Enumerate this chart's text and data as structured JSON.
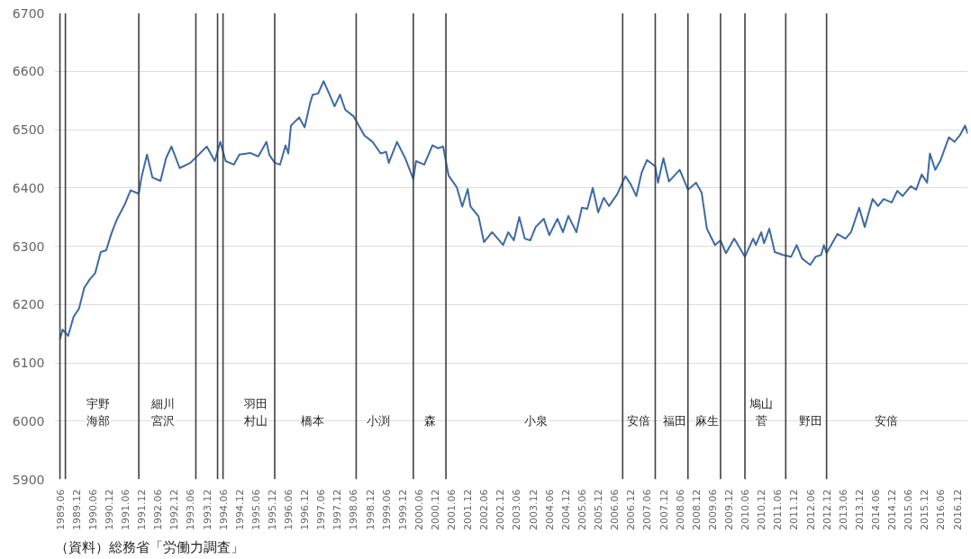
{
  "chart_data": {
    "type": "line",
    "x": [
      "1989-06",
      "1989-07",
      "1989-09",
      "1989-11",
      "1990-01",
      "1990-03",
      "1990-05",
      "1990-07",
      "1990-09",
      "1990-11",
      "1991-01",
      "1991-03",
      "1991-06",
      "1991-08",
      "1991-11",
      "1991-12",
      "1992-02",
      "1992-04",
      "1992-07",
      "1992-09",
      "1992-11",
      "1993-02",
      "1993-06",
      "1993-09",
      "1993-12",
      "1994-03",
      "1994-05",
      "1994-07",
      "1994-10",
      "1994-12",
      "1995-04",
      "1995-07",
      "1995-10",
      "1995-11",
      "1996-01",
      "1996-03",
      "1996-05",
      "1996-06",
      "1996-07",
      "1996-10",
      "1996-12",
      "1997-02",
      "1997-03",
      "1997-05",
      "1997-07",
      "1997-09",
      "1997-11",
      "1998-01",
      "1998-03",
      "1998-06",
      "1998-10",
      "1999-01",
      "1999-04",
      "1999-06",
      "1999-07",
      "1999-10",
      "2000-01",
      "2000-04",
      "2000-05",
      "2000-08",
      "2000-11",
      "2001-01",
      "2001-03",
      "2001-05",
      "2001-08",
      "2001-10",
      "2001-12",
      "2002-01",
      "2002-04",
      "2002-06",
      "2002-09",
      "2003-01",
      "2003-03",
      "2003-05",
      "2003-07",
      "2003-09",
      "2003-11",
      "2004-01",
      "2004-04",
      "2004-06",
      "2004-09",
      "2004-11",
      "2005-01",
      "2005-04",
      "2005-06",
      "2005-08",
      "2005-10",
      "2005-12",
      "2006-02",
      "2006-04",
      "2006-07",
      "2006-10",
      "2006-12",
      "2007-02",
      "2007-04",
      "2007-06",
      "2007-09",
      "2007-10",
      "2007-12",
      "2008-02",
      "2008-06",
      "2008-09",
      "2008-12",
      "2009-02",
      "2009-04",
      "2009-07",
      "2009-09",
      "2009-11",
      "2010-02",
      "2010-06",
      "2010-09",
      "2010-10",
      "2010-12",
      "2011-01",
      "2011-03",
      "2011-05",
      "2011-08",
      "2011-11",
      "2012-01",
      "2012-03",
      "2012-06",
      "2012-08",
      "2012-10",
      "2012-11",
      "2012-12",
      "2013-04",
      "2013-07",
      "2013-09",
      "2013-12",
      "2014-02",
      "2014-05",
      "2014-07",
      "2014-09",
      "2014-12",
      "2015-02",
      "2015-04",
      "2015-07",
      "2015-09",
      "2015-11",
      "2016-01",
      "2016-02",
      "2016-04",
      "2016-06",
      "2016-09",
      "2016-11",
      "2017-01",
      "2017-03",
      "2017-04"
    ],
    "series": [
      {
        "color": "#3e6aa5",
        "values": [
          6140,
          6157,
          6146,
          6179,
          6193,
          6229,
          6243,
          6254,
          6290,
          6293,
          6323,
          6346,
          6373,
          6396,
          6390,
          6418,
          6457,
          6418,
          6412,
          6451,
          6471,
          6434,
          6443,
          6457,
          6471,
          6446,
          6479,
          6446,
          6440,
          6457,
          6460,
          6454,
          6479,
          6457,
          6443,
          6440,
          6473,
          6459,
          6507,
          6521,
          6504,
          6546,
          6560,
          6562,
          6583,
          6562,
          6540,
          6560,
          6534,
          6523,
          6490,
          6479,
          6459,
          6462,
          6443,
          6479,
          6451,
          6415,
          6446,
          6440,
          6473,
          6468,
          6471,
          6421,
          6401,
          6368,
          6398,
          6368,
          6351,
          6307,
          6324,
          6302,
          6324,
          6310,
          6350,
          6313,
          6310,
          6333,
          6347,
          6319,
          6347,
          6324,
          6352,
          6324,
          6366,
          6364,
          6400,
          6358,
          6383,
          6369,
          6389,
          6420,
          6406,
          6386,
          6426,
          6448,
          6437,
          6409,
          6451,
          6411,
          6431,
          6397,
          6409,
          6392,
          6330,
          6302,
          6310,
          6288,
          6313,
          6282,
          6313,
          6302,
          6324,
          6305,
          6330,
          6290,
          6285,
          6282,
          6302,
          6279,
          6268,
          6282,
          6285,
          6302,
          6288,
          6321,
          6313,
          6324,
          6366,
          6333,
          6381,
          6369,
          6381,
          6375,
          6395,
          6386,
          6403,
          6397,
          6423,
          6409,
          6459,
          6431,
          6448,
          6487,
          6479,
          6490,
          6507,
          6493
        ]
      }
    ],
    "xlim": [
      "1989-04",
      "2017-04"
    ],
    "ylim": [
      5900,
      6700
    ],
    "yticks": [
      5900,
      6000,
      6100,
      6200,
      6300,
      6400,
      6500,
      6600,
      6700
    ],
    "xticks": [
      {
        "value": "1989-06",
        "label": "1989.06"
      },
      {
        "value": "1989-12",
        "label": "1989.12"
      },
      {
        "value": "1990-06",
        "label": "1990.06"
      },
      {
        "value": "1990-12",
        "label": "1990.12"
      },
      {
        "value": "1991-06",
        "label": "1991.06"
      },
      {
        "value": "1991-12",
        "label": "1991.12"
      },
      {
        "value": "1992-06",
        "label": "1992.06"
      },
      {
        "value": "1992-12",
        "label": "1992.12"
      },
      {
        "value": "1993-06",
        "label": "1993.06"
      },
      {
        "value": "1993-12",
        "label": "1993.12"
      },
      {
        "value": "1994-06",
        "label": "1994.06"
      },
      {
        "value": "1994-12",
        "label": "1994.12"
      },
      {
        "value": "1995-06",
        "label": "1995.06"
      },
      {
        "value": "1995-12",
        "label": "1995.12"
      },
      {
        "value": "1996-06",
        "label": "1996.06"
      },
      {
        "value": "1996-12",
        "label": "1996.12"
      },
      {
        "value": "1997-06",
        "label": "1997.06"
      },
      {
        "value": "1997-12",
        "label": "1997.12"
      },
      {
        "value": "1998-06",
        "label": "1998.06"
      },
      {
        "value": "1998-12",
        "label": "1998.12"
      },
      {
        "value": "1999-06",
        "label": "1999.06"
      },
      {
        "value": "1999-12",
        "label": "1999.12"
      },
      {
        "value": "2000-06",
        "label": "2000.06"
      },
      {
        "value": "2000-12",
        "label": "2000.12"
      },
      {
        "value": "2001-06",
        "label": "2001.06"
      },
      {
        "value": "2001-12",
        "label": "2001.12"
      },
      {
        "value": "2002-06",
        "label": "2002.06"
      },
      {
        "value": "2002-12",
        "label": "2002.12"
      },
      {
        "value": "2003-06",
        "label": "2003.06"
      },
      {
        "value": "2003-12",
        "label": "2003.12"
      },
      {
        "value": "2004-06",
        "label": "2004.06"
      },
      {
        "value": "2004-12",
        "label": "2004.12"
      },
      {
        "value": "2005-06",
        "label": "2005.06"
      },
      {
        "value": "2005-12",
        "label": "2005.12"
      },
      {
        "value": "2006-06",
        "label": "2006.06"
      },
      {
        "value": "2006-12",
        "label": "2006.12"
      },
      {
        "value": "2007-06",
        "label": "2007.06"
      },
      {
        "value": "2007-12",
        "label": "2007.12"
      },
      {
        "value": "2008-06",
        "label": "2008.06"
      },
      {
        "value": "2008-12",
        "label": "2008.12"
      },
      {
        "value": "2009-06",
        "label": "2009.06"
      },
      {
        "value": "2009-12",
        "label": "2009.12"
      },
      {
        "value": "2010-06",
        "label": "2010.06"
      },
      {
        "value": "2010-12",
        "label": "2010.12"
      },
      {
        "value": "2011-06",
        "label": "2011.06"
      },
      {
        "value": "2011-12",
        "label": "2011.12"
      },
      {
        "value": "2012-06",
        "label": "2012.06"
      },
      {
        "value": "2012-12",
        "label": "2012.12"
      },
      {
        "value": "2013-06",
        "label": "2013.06"
      },
      {
        "value": "2013-12",
        "label": "2013.12"
      },
      {
        "value": "2014-06",
        "label": "2014.06"
      },
      {
        "value": "2014-12",
        "label": "2014.12"
      },
      {
        "value": "2015-06",
        "label": "2015.06"
      },
      {
        "value": "2015-12",
        "label": "2015.12"
      },
      {
        "value": "2016-06",
        "label": "2016.06"
      },
      {
        "value": "2016-12",
        "label": "2016.12"
      }
    ],
    "grid": "y",
    "ref_lines": [
      {
        "axis": "x",
        "value": "1989-06",
        "color": "#404040"
      },
      {
        "axis": "x",
        "value": "1989-08",
        "color": "#404040"
      },
      {
        "axis": "x",
        "value": "1991-11",
        "color": "#404040"
      },
      {
        "axis": "x",
        "value": "1993-08",
        "color": "#404040"
      },
      {
        "axis": "x",
        "value": "1994-04",
        "color": "#404040"
      },
      {
        "axis": "x",
        "value": "1994-06",
        "color": "#404040"
      },
      {
        "axis": "x",
        "value": "1996-01",
        "color": "#404040"
      },
      {
        "axis": "x",
        "value": "1998-07",
        "color": "#404040"
      },
      {
        "axis": "x",
        "value": "2000-04",
        "color": "#404040"
      },
      {
        "axis": "x",
        "value": "2001-04",
        "color": "#404040"
      },
      {
        "axis": "x",
        "value": "2006-09",
        "color": "#404040"
      },
      {
        "axis": "x",
        "value": "2007-09",
        "color": "#404040"
      },
      {
        "axis": "x",
        "value": "2008-09",
        "color": "#404040"
      },
      {
        "axis": "x",
        "value": "2009-09",
        "color": "#404040"
      },
      {
        "axis": "x",
        "value": "2010-06",
        "color": "#404040"
      },
      {
        "axis": "x",
        "value": "2011-09",
        "color": "#404040"
      },
      {
        "axis": "x",
        "value": "2012-12",
        "color": "#404040"
      }
    ],
    "annotations": [
      {
        "text": "宇野",
        "x": "1990-08",
        "y": 6030
      },
      {
        "text": "海部",
        "x": "1990-08",
        "y": 6000
      },
      {
        "text": "細川",
        "x": "1992-08",
        "y": 6030
      },
      {
        "text": "宮沢",
        "x": "1992-08",
        "y": 6000
      },
      {
        "text": "羽田",
        "x": "1995-06",
        "y": 6030
      },
      {
        "text": "村山",
        "x": "1995-06",
        "y": 6000
      },
      {
        "text": "橋本",
        "x": "1997-03",
        "y": 6000
      },
      {
        "text": "小渕",
        "x": "1999-03",
        "y": 6000
      },
      {
        "text": "森",
        "x": "2000-10",
        "y": 6000
      },
      {
        "text": "小泉",
        "x": "2004-01",
        "y": 6000
      },
      {
        "text": "安倍",
        "x": "2007-03",
        "y": 6000
      },
      {
        "text": "福田",
        "x": "2008-04",
        "y": 6000
      },
      {
        "text": "麻生",
        "x": "2009-04",
        "y": 6000
      },
      {
        "text": "鳩山",
        "x": "2010-12",
        "y": 6030
      },
      {
        "text": "菅",
        "x": "2010-12",
        "y": 6000
      },
      {
        "text": "野田",
        "x": "2012-06",
        "y": 6000
      },
      {
        "text": "安倍",
        "x": "2014-10",
        "y": 6000
      },
      "（資料）総務省「労働力調査」"
    ]
  }
}
